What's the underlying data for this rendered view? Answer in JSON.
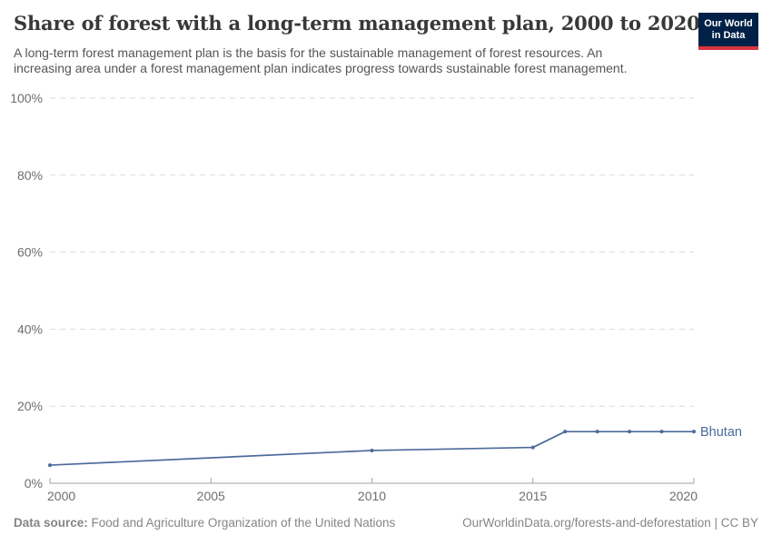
{
  "header": {
    "title": "Share of forest with a long-term management plan, 2000 to 2020",
    "subtitle_line1": "A long-term forest management plan is the basis for the sustainable management of forest resources. An",
    "subtitle_line2": "increasing area under a forest management plan indicates progress towards sustainable forest management."
  },
  "logo": {
    "line1": "Our World",
    "line2": "in Data",
    "bg_color": "#002147",
    "accent_color": "#d8353f"
  },
  "footer": {
    "data_source_label": "Data source:",
    "data_source_value": "Food and Agriculture Organization of the United Nations",
    "attribution": "OurWorldinData.org/forests-and-deforestation | CC BY"
  },
  "chart_data": {
    "type": "line",
    "title": "Share of forest with a long-term management plan, 2000 to 2020",
    "xlim": [
      2000,
      2020
    ],
    "ylim": [
      0,
      100
    ],
    "grid": "horizontal-dashed",
    "legend_position": "end-of-line-label",
    "x_ticks": [
      {
        "value": 2000,
        "label": "2000"
      },
      {
        "value": 2005,
        "label": "2005"
      },
      {
        "value": 2010,
        "label": "2010"
      },
      {
        "value": 2015,
        "label": "2015"
      },
      {
        "value": 2020,
        "label": "2020"
      }
    ],
    "y_ticks": [
      {
        "value": 0,
        "label": "0%"
      },
      {
        "value": 20,
        "label": "20%"
      },
      {
        "value": 40,
        "label": "40%"
      },
      {
        "value": 60,
        "label": "60%"
      },
      {
        "value": 80,
        "label": "80%"
      },
      {
        "value": 100,
        "label": "100%"
      }
    ],
    "series": [
      {
        "name": "Bhutan",
        "color": "#4c6a9c",
        "points": [
          [
            2000,
            4.7
          ],
          [
            2010,
            8.5
          ],
          [
            2015,
            9.3
          ],
          [
            2016,
            13.4
          ],
          [
            2017,
            13.4
          ],
          [
            2018,
            13.4
          ],
          [
            2019,
            13.4
          ],
          [
            2020,
            13.4
          ]
        ]
      }
    ],
    "colors": {
      "gridline": "#d9d9d9",
      "axis": "#a0a0a0",
      "tick_label": "#6e6e6e"
    }
  }
}
